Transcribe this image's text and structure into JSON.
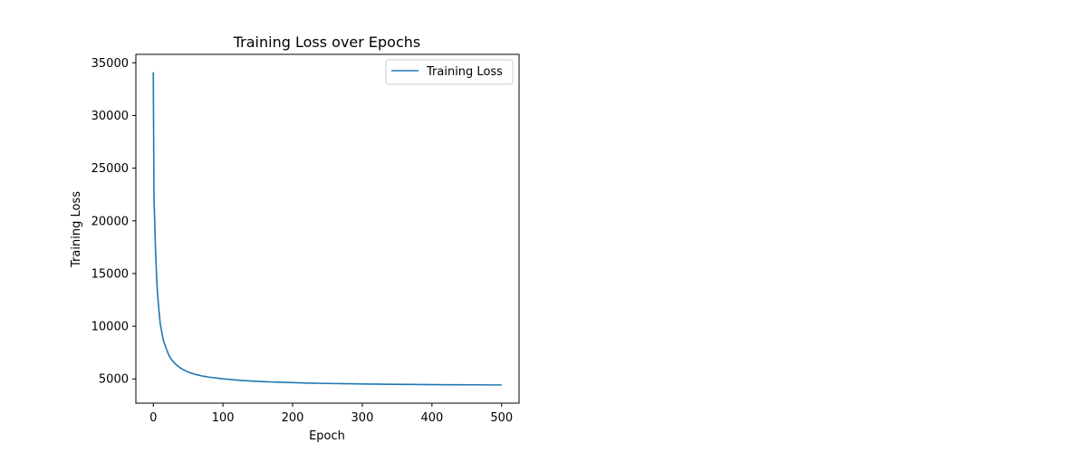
{
  "chart_data": {
    "type": "line",
    "title": "Training Loss over Epochs",
    "xlabel": "Epoch",
    "ylabel": "Training Loss",
    "xlim": [
      -25,
      525
    ],
    "ylim": [
      2700,
      35800
    ],
    "xticks": [
      0,
      100,
      200,
      300,
      400,
      500
    ],
    "yticks": [
      5000,
      10000,
      15000,
      20000,
      25000,
      30000,
      35000
    ],
    "grid": false,
    "legend_position": "top-right",
    "series": [
      {
        "name": "Training Loss",
        "color": "#1f77b4",
        "x": [
          0,
          1,
          2,
          3,
          4,
          5,
          6,
          7,
          8,
          9,
          10,
          11,
          12,
          13,
          14,
          15,
          16,
          17,
          18,
          19,
          20,
          22,
          24,
          26,
          28,
          30,
          32,
          34,
          36,
          38,
          40,
          42,
          44,
          46,
          48,
          50,
          52,
          54,
          56,
          58,
          60,
          65,
          70,
          75,
          80,
          85,
          90,
          95,
          100,
          110,
          120,
          130,
          140,
          150,
          160,
          170,
          180,
          190,
          200,
          210,
          220,
          230,
          240,
          250,
          260,
          270,
          280,
          290,
          300,
          310,
          320,
          330,
          340,
          350,
          360,
          370,
          380,
          390,
          400,
          410,
          420,
          430,
          440,
          450,
          460,
          470,
          480,
          490,
          500
        ],
        "y": [
          34100,
          22000,
          20100,
          17600,
          15900,
          14300,
          13200,
          12400,
          11600,
          10900,
          10200,
          9900,
          9500,
          9150,
          8800,
          8550,
          8350,
          8200,
          8000,
          7800,
          7650,
          7300,
          7050,
          6850,
          6700,
          6550,
          6400,
          6300,
          6180,
          6080,
          6000,
          5920,
          5840,
          5780,
          5720,
          5660,
          5600,
          5560,
          5520,
          5480,
          5440,
          5360,
          5280,
          5230,
          5170,
          5130,
          5090,
          5050,
          5010,
          4950,
          4890,
          4840,
          4800,
          4770,
          4740,
          4710,
          4690,
          4670,
          4650,
          4630,
          4610,
          4600,
          4580,
          4570,
          4560,
          4550,
          4540,
          4530,
          4520,
          4510,
          4510,
          4500,
          4490,
          4490,
          4480,
          4480,
          4470,
          4470,
          4460,
          4460,
          4450,
          4450,
          4450,
          4440,
          4440,
          4440,
          4430,
          4430,
          4430
        ]
      }
    ]
  }
}
